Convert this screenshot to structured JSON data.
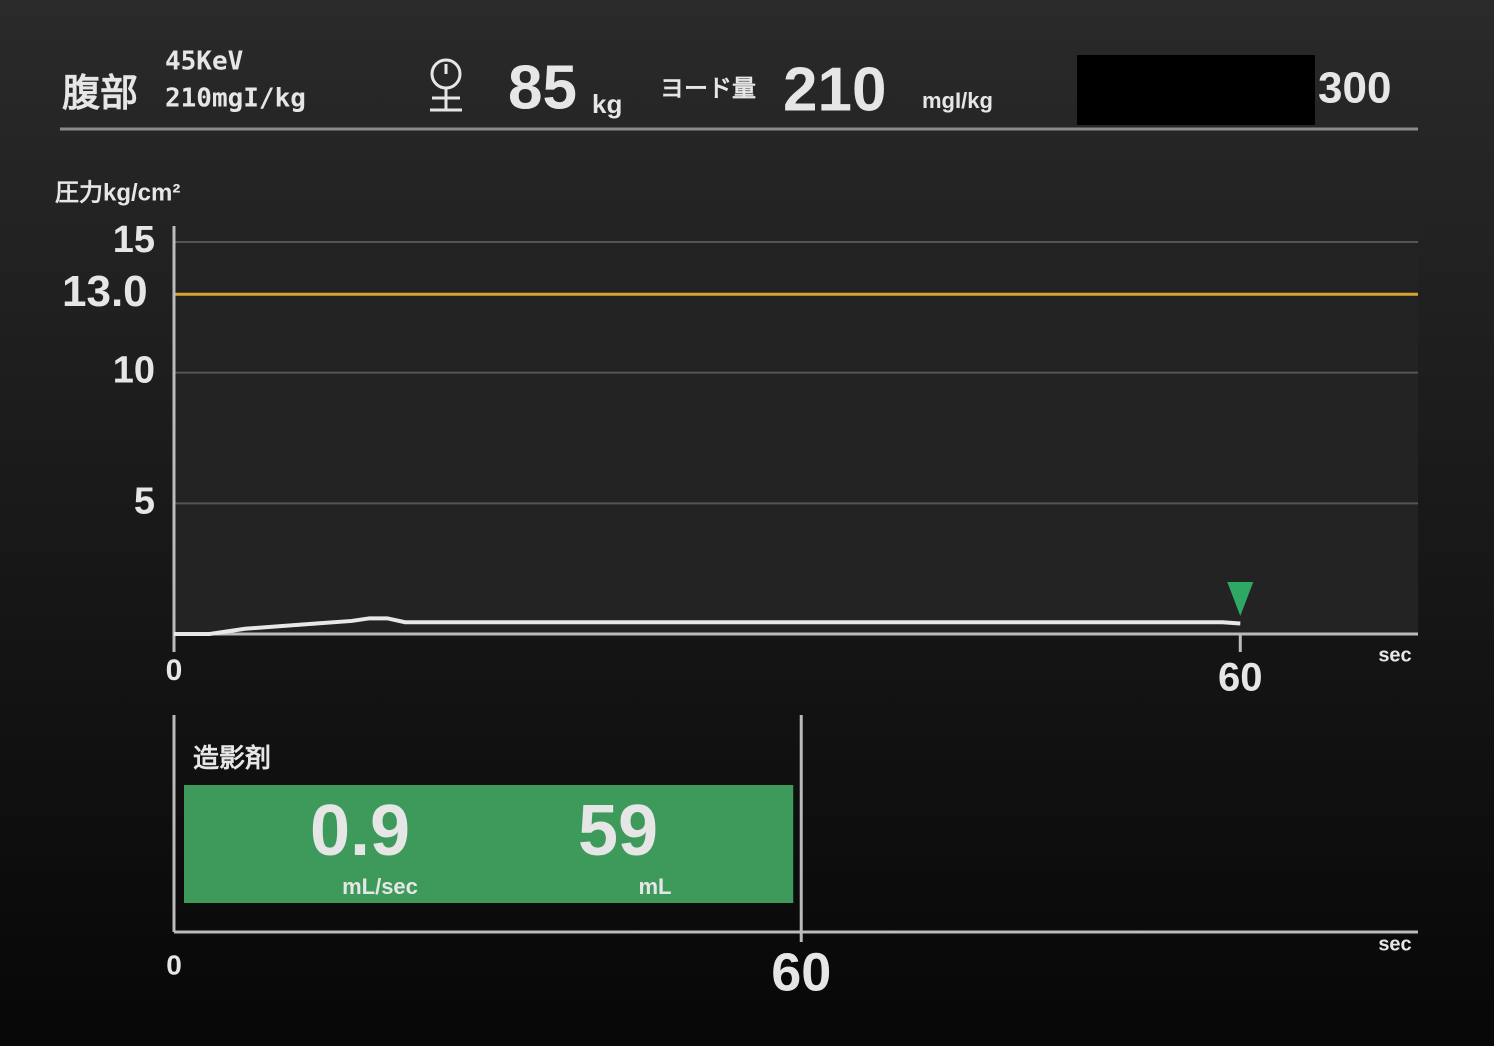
{
  "header": {
    "region": "腹部",
    "kev": "45KeV",
    "dose_setting": "210mgI/kg",
    "weight": 85,
    "weight_unit": "kg",
    "iodine_label": "ヨード量",
    "iodine": 210,
    "iodine_unit": "mgI/kg",
    "right_value": 300
  },
  "chart_data": {
    "type": "line",
    "y_label": "圧力kg/cm²",
    "x_unit": "sec",
    "x": [
      0,
      2,
      4,
      6,
      8,
      10,
      11,
      12,
      13,
      20,
      30,
      40,
      50,
      59,
      60
    ],
    "series": [
      {
        "color": "#e8e8e8",
        "values": [
          0,
          0,
          0.2,
          0.3,
          0.4,
          0.5,
          0.6,
          0.6,
          0.45,
          0.45,
          0.45,
          0.45,
          0.45,
          0.45,
          0.4
        ]
      }
    ],
    "xlim": [
      0,
      70
    ],
    "ylim": [
      0,
      15
    ],
    "xticks": [
      0,
      60
    ],
    "yticks": [
      5,
      10,
      15
    ],
    "grid": true,
    "limit": {
      "value": 13,
      "label": "13.0",
      "color": "#d9a530"
    },
    "marker": {
      "x": 60,
      "color": "#2ea864"
    }
  },
  "protocol": {
    "label": "造影剤",
    "rate": 0.9,
    "rate_unit": "mL/sec",
    "volume": 59,
    "volume_unit": "mL",
    "start": 0,
    "end": 60,
    "xlim": [
      0,
      119
    ],
    "xticks": [
      0,
      60
    ],
    "x_unit": "sec",
    "color": "#3d9a5a"
  }
}
